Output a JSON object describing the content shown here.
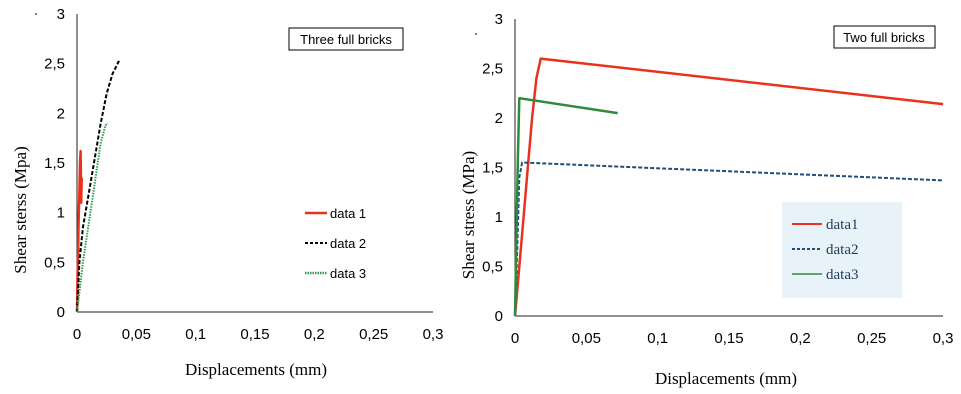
{
  "chart_data": [
    {
      "type": "line",
      "title": "Three full bricks",
      "xlabel": "Displacements (mm)",
      "ylabel": "Shear sterss (Mpa)",
      "xlim": [
        0,
        0.3
      ],
      "ylim": [
        0,
        3
      ],
      "xticks": [
        "0",
        "0,05",
        "0,1",
        "0,15",
        "0,2",
        "0,25",
        "0,3"
      ],
      "yticks": [
        "0",
        "0,5",
        "1",
        "1,5",
        "2",
        "2,5",
        "3"
      ],
      "legend_position": "right-middle",
      "series": [
        {
          "name": "data 1",
          "color": "#e8321e",
          "style": "solid",
          "x": [
            0,
            0.0005,
            0.001,
            0.0012,
            0.0015,
            0.002,
            0.0022,
            0.0025,
            0.003,
            0.0035,
            0.004
          ],
          "y": [
            0,
            0.4,
            0.6,
            0.8,
            1.0,
            1.2,
            1.3,
            1.5,
            1.62,
            1.1,
            1.35
          ]
        },
        {
          "name": "data 2",
          "color": "#000000",
          "style": "dashed",
          "x": [
            0,
            0.002,
            0.005,
            0.01,
            0.015,
            0.02,
            0.025,
            0.03,
            0.033,
            0.035,
            0.037
          ],
          "y": [
            0,
            0.5,
            0.85,
            1.2,
            1.55,
            1.9,
            2.2,
            2.4,
            2.47,
            2.52,
            2.5
          ]
        },
        {
          "name": "data 3",
          "color": "#2e9a4c",
          "style": "dotted",
          "x": [
            0,
            0.002,
            0.005,
            0.01,
            0.015,
            0.02,
            0.024,
            0.026
          ],
          "y": [
            0,
            0.2,
            0.5,
            0.9,
            1.3,
            1.7,
            1.88,
            1.9
          ]
        }
      ]
    },
    {
      "type": "line",
      "title": "Two full bricks",
      "xlabel": "Displacements (mm)",
      "ylabel": "Shear stress (MPa)",
      "xlim": [
        0,
        0.3
      ],
      "ylim": [
        0,
        3
      ],
      "xticks": [
        "0",
        "0,05",
        "0,1",
        "0,15",
        "0,2",
        "0,25",
        "0,3"
      ],
      "yticks": [
        "0",
        "0,5",
        "1",
        "1,5",
        "2",
        "2,5",
        "3"
      ],
      "legend_position": "bottom-right",
      "series": [
        {
          "name": "data1",
          "color": "#e8321e",
          "style": "solid",
          "x": [
            0,
            0.003,
            0.006,
            0.009,
            0.012,
            0.015,
            0.018,
            0.3
          ],
          "y": [
            0,
            0.5,
            1.0,
            1.5,
            2.0,
            2.4,
            2.6,
            2.14
          ]
        },
        {
          "name": "data2",
          "color": "#1f4e79",
          "style": "dashed",
          "x": [
            0,
            0.001,
            0.002,
            0.003,
            0.005,
            0.3
          ],
          "y": [
            0,
            0.4,
            0.9,
            1.4,
            1.55,
            1.37
          ]
        },
        {
          "name": "data3",
          "color": "#2e8b3e",
          "style": "solid",
          "x": [
            0,
            0.001,
            0.002,
            0.003,
            0.072
          ],
          "y": [
            0,
            0.8,
            1.6,
            2.2,
            2.05
          ]
        }
      ]
    }
  ]
}
